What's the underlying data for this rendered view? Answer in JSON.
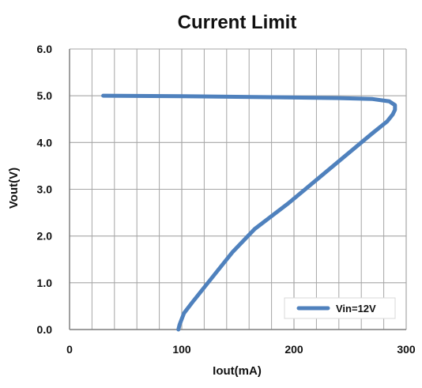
{
  "chart_data": {
    "type": "line",
    "title": "Current Limit",
    "xlabel": "Iout(mA)",
    "ylabel": "Vout(V)",
    "xlim": [
      0,
      300
    ],
    "ylim": [
      0.0,
      6.0
    ],
    "x_ticks": [
      "0",
      "100",
      "200",
      "300"
    ],
    "y_ticks": [
      "0.0",
      "1.0",
      "2.0",
      "3.0",
      "4.0",
      "5.0",
      "6.0"
    ],
    "grid": true,
    "legend_position": "bottom-right",
    "colors": {
      "series": "#4f81bd",
      "grid": "#a6a6a6",
      "axis": "#7f7f7f",
      "legend_border": "#d9d9d9"
    },
    "series": [
      {
        "name": "Vin=12V",
        "points": [
          [
            30,
            5.0
          ],
          [
            100,
            4.99
          ],
          [
            180,
            4.97
          ],
          [
            240,
            4.95
          ],
          [
            270,
            4.93
          ],
          [
            285,
            4.88
          ],
          [
            290,
            4.8
          ],
          [
            290,
            4.7
          ],
          [
            288,
            4.6
          ],
          [
            283,
            4.45
          ],
          [
            270,
            4.2
          ],
          [
            245,
            3.7
          ],
          [
            220,
            3.2
          ],
          [
            195,
            2.7
          ],
          [
            165,
            2.15
          ],
          [
            145,
            1.65
          ],
          [
            130,
            1.2
          ],
          [
            120,
            0.9
          ],
          [
            110,
            0.6
          ],
          [
            102,
            0.35
          ],
          [
            98,
            0.1
          ],
          [
            97,
            0.0
          ]
        ]
      }
    ]
  }
}
